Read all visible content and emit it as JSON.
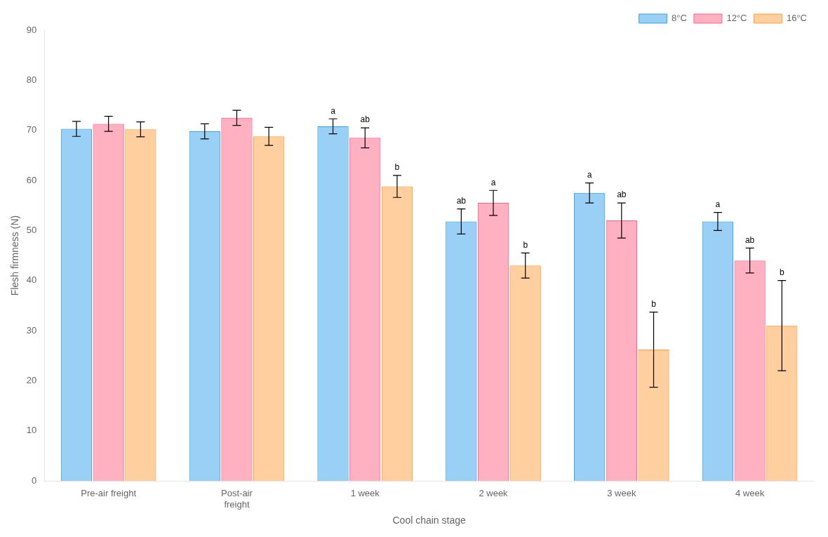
{
  "chart_data": {
    "type": "bar",
    "categories": [
      "Pre-air freight",
      "Post-air\nfreight",
      "1 week",
      "2 week",
      "3 week",
      "4 week"
    ],
    "series": [
      {
        "name": "8°C",
        "values": [
          70.3,
          69.8,
          70.8,
          51.8,
          57.5,
          51.8
        ],
        "errors": [
          1.5,
          1.5,
          1.5,
          2.5,
          2.0,
          1.8
        ],
        "annotations": [
          null,
          null,
          "a",
          "ab",
          "a",
          "a"
        ]
      },
      {
        "name": "12°C",
        "values": [
          71.3,
          72.5,
          68.5,
          55.5,
          52.0,
          44.0
        ],
        "errors": [
          1.5,
          1.5,
          2.0,
          2.5,
          3.5,
          2.5
        ],
        "annotations": [
          null,
          null,
          "ab",
          "a",
          "ab",
          "ab"
        ]
      },
      {
        "name": "16°C",
        "values": [
          70.2,
          68.8,
          58.8,
          43.0,
          26.2,
          31.0
        ],
        "errors": [
          1.5,
          1.8,
          2.2,
          2.5,
          7.5,
          9.0
        ],
        "annotations": [
          null,
          null,
          "b",
          "b",
          "b",
          "b"
        ]
      }
    ],
    "xlabel": "Cool chain stage",
    "ylabel": "Flesh firmness (N)",
    "ylim": [
      0,
      90
    ],
    "yticks": [
      0,
      10,
      20,
      30,
      40,
      50,
      60,
      70,
      80,
      90
    ],
    "grid": false,
    "legend": "upper right"
  }
}
